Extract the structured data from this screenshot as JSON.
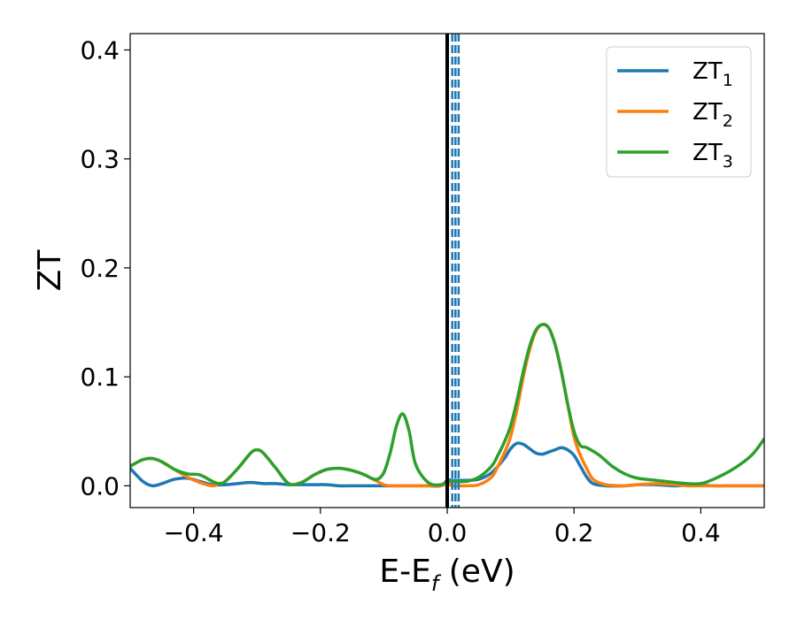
{
  "chart_data": {
    "type": "line",
    "xlabel": {
      "main": "E-E",
      "sub": "f",
      "tail": " (eV)"
    },
    "ylabel": "ZT",
    "xlim": [
      -0.5,
      0.5
    ],
    "ylim": [
      -0.02,
      0.415
    ],
    "xticks": [
      -0.4,
      -0.2,
      0.0,
      0.2,
      0.4
    ],
    "xtick_labels": [
      "−0.4",
      "−0.2",
      "0.0",
      "0.2",
      "0.4"
    ],
    "yticks": [
      0.0,
      0.1,
      0.2,
      0.3,
      0.4
    ],
    "ytick_labels": [
      "0.0",
      "0.1",
      "0.2",
      "0.3",
      "0.4"
    ],
    "grid": false,
    "legend_position": "top-right",
    "fermi_line_x": 0.0,
    "dashed_lines_x": [
      0.008,
      0.013,
      0.018
    ],
    "series": [
      {
        "name": "ZT",
        "sub": "1",
        "color": "#1f77b4",
        "x": [
          -0.5,
          -0.48,
          -0.465,
          -0.45,
          -0.43,
          -0.41,
          -0.39,
          -0.37,
          -0.35,
          -0.33,
          -0.31,
          -0.29,
          -0.27,
          -0.25,
          -0.23,
          -0.21,
          -0.19,
          -0.17,
          -0.15,
          -0.13,
          -0.11,
          -0.09,
          -0.07,
          -0.05,
          -0.03,
          -0.01,
          0.0,
          0.01,
          0.03,
          0.05,
          0.07,
          0.09,
          0.1,
          0.11,
          0.12,
          0.13,
          0.14,
          0.15,
          0.16,
          0.17,
          0.18,
          0.19,
          0.2,
          0.21,
          0.22,
          0.23,
          0.25,
          0.28,
          0.3,
          0.33,
          0.36,
          0.39,
          0.42,
          0.45,
          0.48,
          0.5
        ],
        "y": [
          0.016,
          0.004,
          0.0,
          0.002,
          0.006,
          0.007,
          0.004,
          0.001,
          0.001,
          0.002,
          0.003,
          0.002,
          0.002,
          0.001,
          0.001,
          0.001,
          0.001,
          0.0,
          0.0,
          0.0,
          0.0,
          0.0,
          0.0,
          0.0,
          0.0,
          0.0,
          0.005,
          0.005,
          0.005,
          0.006,
          0.012,
          0.025,
          0.034,
          0.039,
          0.038,
          0.034,
          0.03,
          0.029,
          0.031,
          0.033,
          0.035,
          0.033,
          0.028,
          0.018,
          0.008,
          0.002,
          0.0,
          0.0,
          0.001,
          0.001,
          0.0,
          0.001,
          0.0,
          0.0,
          0.0,
          0.0
        ]
      },
      {
        "name": "ZT",
        "sub": "2",
        "color": "#ff7f0e",
        "x": [
          -0.5,
          -0.48,
          -0.465,
          -0.45,
          -0.43,
          -0.41,
          -0.39,
          -0.37,
          -0.36,
          -0.35,
          -0.33,
          -0.31,
          -0.3,
          -0.29,
          -0.27,
          -0.25,
          -0.23,
          -0.21,
          -0.19,
          -0.17,
          -0.15,
          -0.13,
          -0.12,
          -0.11,
          -0.1,
          -0.09,
          -0.07,
          -0.05,
          -0.03,
          -0.01,
          0.0,
          0.01,
          0.03,
          0.05,
          0.07,
          0.08,
          0.09,
          0.1,
          0.11,
          0.12,
          0.13,
          0.14,
          0.15,
          0.16,
          0.17,
          0.18,
          0.19,
          0.2,
          0.21,
          0.22,
          0.23,
          0.25,
          0.28,
          0.3,
          0.33,
          0.36,
          0.38,
          0.4,
          0.42,
          0.45,
          0.48,
          0.5
        ],
        "y": [
          0.018,
          0.024,
          0.025,
          0.022,
          0.015,
          0.008,
          0.003,
          0.0,
          0.002,
          0.004,
          0.016,
          0.03,
          0.033,
          0.03,
          0.016,
          0.002,
          0.003,
          0.01,
          0.015,
          0.016,
          0.014,
          0.01,
          0.007,
          0.004,
          0.001,
          0.0,
          0.0,
          0.0,
          0.0,
          0.0,
          0.002,
          0.0,
          0.0,
          0.001,
          0.008,
          0.018,
          0.03,
          0.045,
          0.07,
          0.1,
          0.125,
          0.142,
          0.148,
          0.145,
          0.13,
          0.105,
          0.075,
          0.045,
          0.028,
          0.016,
          0.006,
          0.001,
          0.0,
          0.001,
          0.002,
          0.001,
          0.0,
          0.0,
          0.0,
          0.0,
          0.0,
          0.0
        ]
      },
      {
        "name": "ZT",
        "sub": "3",
        "color": "#2ca02c",
        "x": [
          -0.5,
          -0.48,
          -0.465,
          -0.45,
          -0.43,
          -0.41,
          -0.39,
          -0.37,
          -0.36,
          -0.35,
          -0.33,
          -0.31,
          -0.3,
          -0.29,
          -0.27,
          -0.25,
          -0.23,
          -0.21,
          -0.19,
          -0.17,
          -0.15,
          -0.13,
          -0.12,
          -0.11,
          -0.1,
          -0.09,
          -0.08,
          -0.07,
          -0.06,
          -0.05,
          -0.03,
          -0.01,
          0.0,
          0.01,
          0.03,
          0.05,
          0.07,
          0.08,
          0.09,
          0.1,
          0.11,
          0.12,
          0.13,
          0.14,
          0.15,
          0.16,
          0.17,
          0.18,
          0.19,
          0.2,
          0.21,
          0.22,
          0.24,
          0.26,
          0.28,
          0.3,
          0.33,
          0.36,
          0.38,
          0.4,
          0.42,
          0.45,
          0.48,
          0.5
        ],
        "y": [
          0.018,
          0.024,
          0.025,
          0.022,
          0.015,
          0.011,
          0.01,
          0.004,
          0.002,
          0.004,
          0.016,
          0.03,
          0.033,
          0.03,
          0.016,
          0.002,
          0.003,
          0.01,
          0.015,
          0.016,
          0.014,
          0.01,
          0.007,
          0.006,
          0.012,
          0.03,
          0.055,
          0.066,
          0.05,
          0.02,
          0.003,
          0.001,
          0.004,
          0.004,
          0.004,
          0.008,
          0.018,
          0.028,
          0.04,
          0.055,
          0.078,
          0.105,
          0.128,
          0.143,
          0.148,
          0.145,
          0.13,
          0.105,
          0.075,
          0.05,
          0.037,
          0.035,
          0.028,
          0.018,
          0.011,
          0.007,
          0.005,
          0.003,
          0.002,
          0.002,
          0.006,
          0.015,
          0.028,
          0.043
        ]
      }
    ]
  }
}
